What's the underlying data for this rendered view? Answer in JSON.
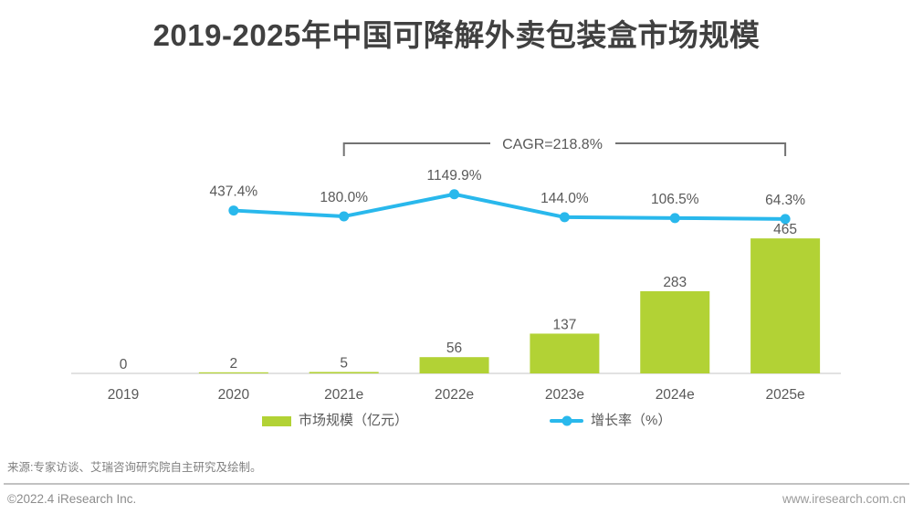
{
  "title": "2019-2025年中国可降解外卖包装盒市场规模",
  "chart_data": {
    "type": "bar",
    "title": "2019-2025年中国可降解外卖包装盒市场规模",
    "categories": [
      "2019",
      "2020",
      "2021e",
      "2022e",
      "2023e",
      "2024e",
      "2025e"
    ],
    "series": [
      {
        "name": "市场规模（亿元）",
        "chart": "bar",
        "color": "#B2D235",
        "values": [
          0,
          2,
          5,
          56,
          137,
          283,
          465
        ],
        "labels": [
          "0",
          "2",
          "5",
          "56",
          "137",
          "283",
          "465"
        ]
      },
      {
        "name": "增长率（%）",
        "chart": "line",
        "color": "#29B8EC",
        "values": [
          null,
          437.4,
          180.0,
          1149.9,
          144.0,
          106.5,
          64.3
        ],
        "labels": [
          null,
          "437.4%",
          "180.0%",
          "1149.9%",
          "144.0%",
          "106.5%",
          "64.3%"
        ]
      }
    ],
    "annotations": [
      {
        "label": "CAGR=218.8%",
        "from_category": "2021e",
        "to_category": "2025e"
      }
    ],
    "grid": false,
    "legend_position": "bottom",
    "y_axis_visible": false
  },
  "legend": {
    "market_size": "市场规模（亿元）",
    "growth_rate": "增长率（%）"
  },
  "source": "来源:专家访谈、艾瑞咨询研究院自主研究及绘制。",
  "footer": {
    "left": "©2022.4 iResearch Inc.",
    "right": "www.iresearch.com.cn"
  },
  "colors": {
    "bar": "#B2D235",
    "line": "#29B8EC",
    "title": "#404040",
    "label": "#595959",
    "axis": "#D9D9D9",
    "bracket": "#737373"
  }
}
